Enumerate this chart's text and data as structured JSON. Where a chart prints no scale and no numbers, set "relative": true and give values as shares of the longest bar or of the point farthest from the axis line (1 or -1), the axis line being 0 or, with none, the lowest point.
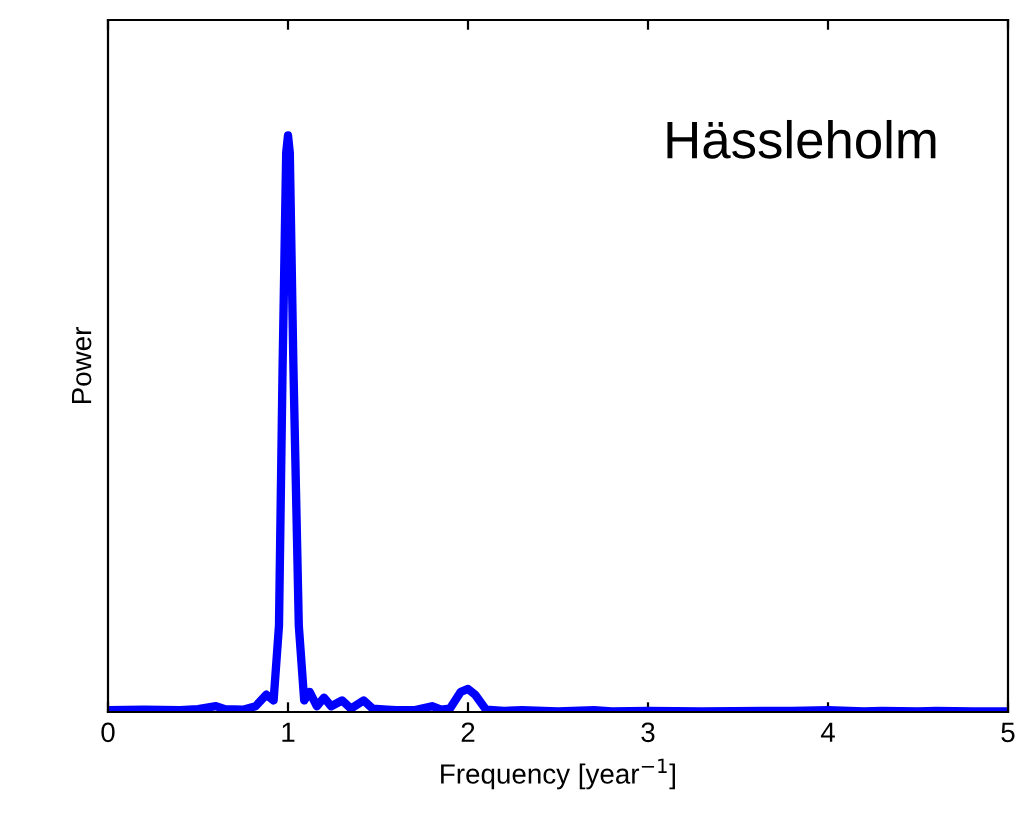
{
  "chart_data": {
    "type": "line",
    "relative": true,
    "xlabel": "Frequency [year$^{−1}$]",
    "ylabel": "Power",
    "annotations": [
      "Hässleholm"
    ],
    "xlim": [
      0,
      5
    ],
    "xticks": [
      0,
      1,
      2,
      3,
      4,
      5
    ],
    "grid": false,
    "marker": "none",
    "line_style": "solid",
    "series": [
      {
        "color": "#0000ff",
        "x": [
          0,
          0.2,
          0.4,
          0.5,
          0.6,
          0.65,
          0.75,
          0.82,
          0.88,
          0.92,
          0.95,
          0.97,
          0.99,
          1.0,
          1.01,
          1.03,
          1.06,
          1.09,
          1.12,
          1.16,
          1.2,
          1.24,
          1.3,
          1.35,
          1.42,
          1.47,
          1.55,
          1.6,
          1.7,
          1.8,
          1.85,
          1.9,
          1.96,
          2.0,
          2.04,
          2.1,
          2.2,
          2.3,
          2.5,
          2.7,
          2.8,
          3.0,
          3.3,
          3.8,
          4.0,
          4.2,
          4.3,
          4.5,
          4.6,
          4.8,
          5.0
        ],
        "values": [
          0.003,
          0.004,
          0.003,
          0.005,
          0.01,
          0.005,
          0.004,
          0.01,
          0.03,
          0.02,
          0.15,
          0.6,
          0.97,
          1,
          0.97,
          0.6,
          0.15,
          0.02,
          0.035,
          0.01,
          0.025,
          0.01,
          0.02,
          0.006,
          0.02,
          0.006,
          0.004,
          0.003,
          0.003,
          0.01,
          0.004,
          0.006,
          0.035,
          0.04,
          0.03,
          0.004,
          0.002,
          0.003,
          0.001,
          0.003,
          0.001,
          0.002,
          0.001,
          0.002,
          0.003,
          0.001,
          0.002,
          0.001,
          0.002,
          0.001,
          0.001
        ]
      }
    ]
  }
}
